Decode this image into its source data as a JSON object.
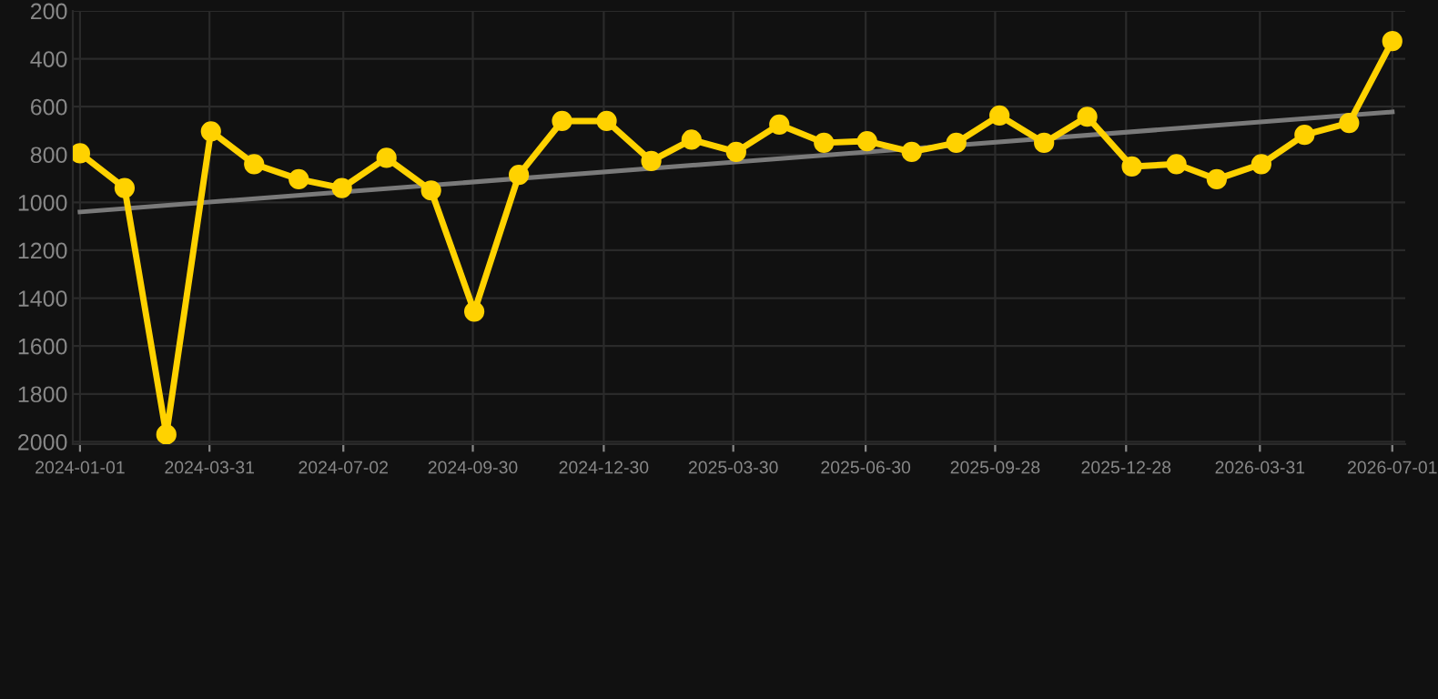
{
  "chart_data": {
    "type": "line",
    "x": [
      "2024-01",
      "2024-02",
      "2024-03",
      "2024-04",
      "2024-05",
      "2024-06",
      "2024-07",
      "2024-08",
      "2024-09",
      "2024-10",
      "2024-11",
      "2024-12",
      "2025-01",
      "2025-02",
      "2025-03",
      "2025-04",
      "2025-05",
      "2025-06",
      "2025-07",
      "2025-08",
      "2025-09",
      "2025-10",
      "2025-11",
      "2025-12",
      "2026-01",
      "2026-02",
      "2026-03",
      "2026-04",
      "2026-05",
      "2026-06",
      "2026-07"
    ],
    "series": [
      {
        "color": "#ffd200",
        "values": [
          795,
          940,
          1970,
          703,
          840,
          903,
          940,
          814,
          950,
          1456,
          885,
          660,
          660,
          827,
          738,
          789,
          675,
          751,
          744,
          789,
          751,
          637,
          751,
          642,
          850,
          840,
          903,
          840,
          718,
          668,
          326
        ]
      },
      {
        "type": "line",
        "marker": "none",
        "color": "#7a7a7a",
        "x": [
          "2024-01",
          "2026-07"
        ],
        "values": [
          1040,
          622
        ]
      }
    ],
    "ylim": [
      2010,
      200
    ],
    "yticks": [
      200,
      400,
      600,
      800,
      1000,
      1200,
      1400,
      1600,
      1800,
      2000
    ],
    "xlim": [
      "2023-12-27",
      "2026-07-10"
    ],
    "xticks": [
      "2024-01-01",
      "2024-03-31",
      "2024-07-02",
      "2024-09-30",
      "2024-12-30",
      "2025-03-30",
      "2025-06-30",
      "2025-09-28",
      "2025-12-28",
      "2026-03-31",
      "2026-07-01"
    ],
    "grid": true,
    "marker": "circle",
    "line_style": "solid"
  }
}
